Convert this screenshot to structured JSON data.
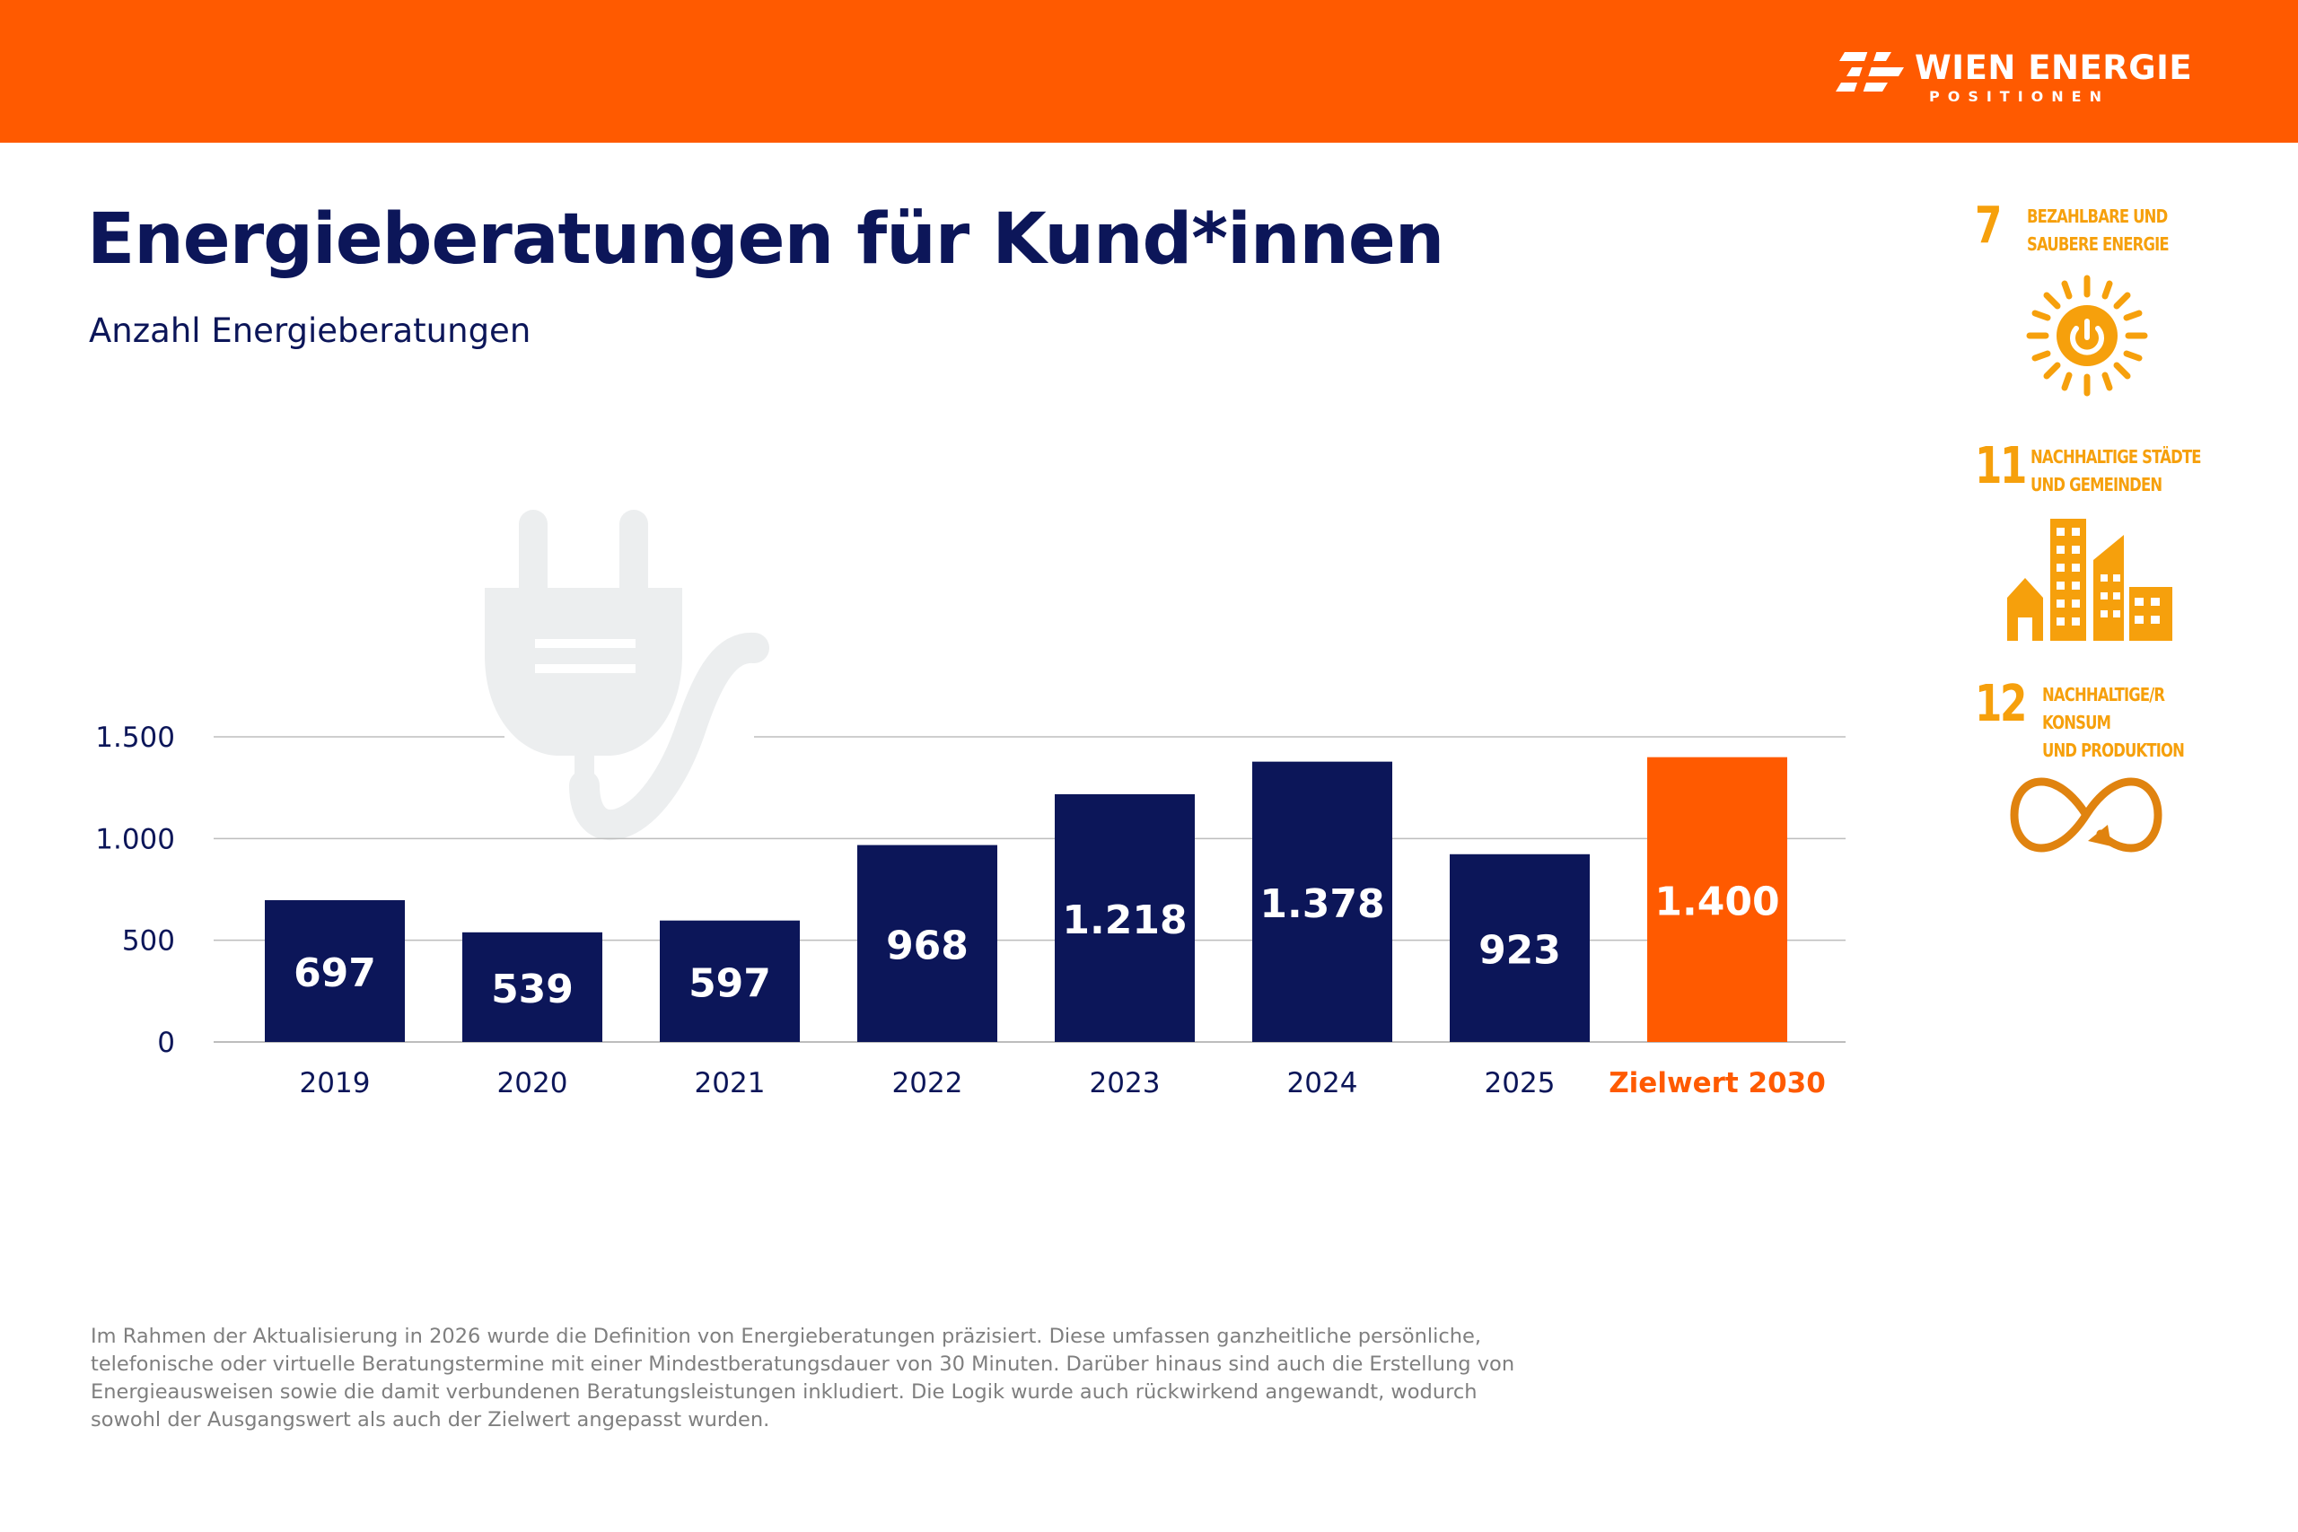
{
  "brand": {
    "name": "WIEN ENERGIE",
    "sub": "POSITIONEN",
    "colors": {
      "primary": "#ff5a00",
      "navy": "#0c1659",
      "sdg": "#f6a00c",
      "sdg12": "#e0830f"
    }
  },
  "chart_data": {
    "type": "bar",
    "title": "Energieberatungen für Kund*innen",
    "subtitle": "Anzahl Energieberatungen",
    "categories": [
      "2019",
      "2020",
      "2021",
      "2022",
      "2023",
      "2024",
      "2025",
      "Zielwert 2030"
    ],
    "values": [
      697,
      539,
      597,
      968,
      1218,
      1378,
      923,
      1400
    ],
    "labels": [
      "697",
      "539",
      "597",
      "968",
      "1.218",
      "1.378",
      "923",
      "1.400"
    ],
    "highlight_index": 7,
    "bar_colors": {
      "default": "#0c1659",
      "highlight": "#ff5a00"
    },
    "ylim": [
      0,
      1500
    ],
    "yticks": [
      0,
      500,
      1000,
      1500
    ],
    "ytick_labels": [
      "0",
      "500",
      "1.000",
      "1.500"
    ],
    "grid": true,
    "xlabel": "",
    "ylabel": "",
    "background_icon": "plug-icon"
  },
  "sdgs": [
    {
      "number": "7",
      "text": "BEZAHLBARE UND\nSAUBERE ENERGIE",
      "icon": "sun-power-icon"
    },
    {
      "number": "11",
      "text": "NACHHALTIGE STÄDTE\nUND GEMEINDEN",
      "icon": "city-buildings-icon"
    },
    {
      "number": "12",
      "text": "NACHHALTIGE/R\nKONSUM\nUND PRODUKTION",
      "icon": "infinity-icon"
    }
  ],
  "footnote": "Im Rahmen der Aktualisierung in 2026 wurde die Definition von Energieberatungen präzisiert. Diese umfassen ganzheitliche persönliche, telefonische oder virtuelle Beratungstermine mit einer Mindestberatungsdauer von 30 Minuten. Darüber hinaus sind auch die Erstellung von Energieausweisen sowie die damit verbundenen Beratungsleistungen inkludiert. Die Logik wurde auch rückwirkend angewandt, wodurch sowohl der Ausgangswert als auch der Zielwert angepasst wurden."
}
